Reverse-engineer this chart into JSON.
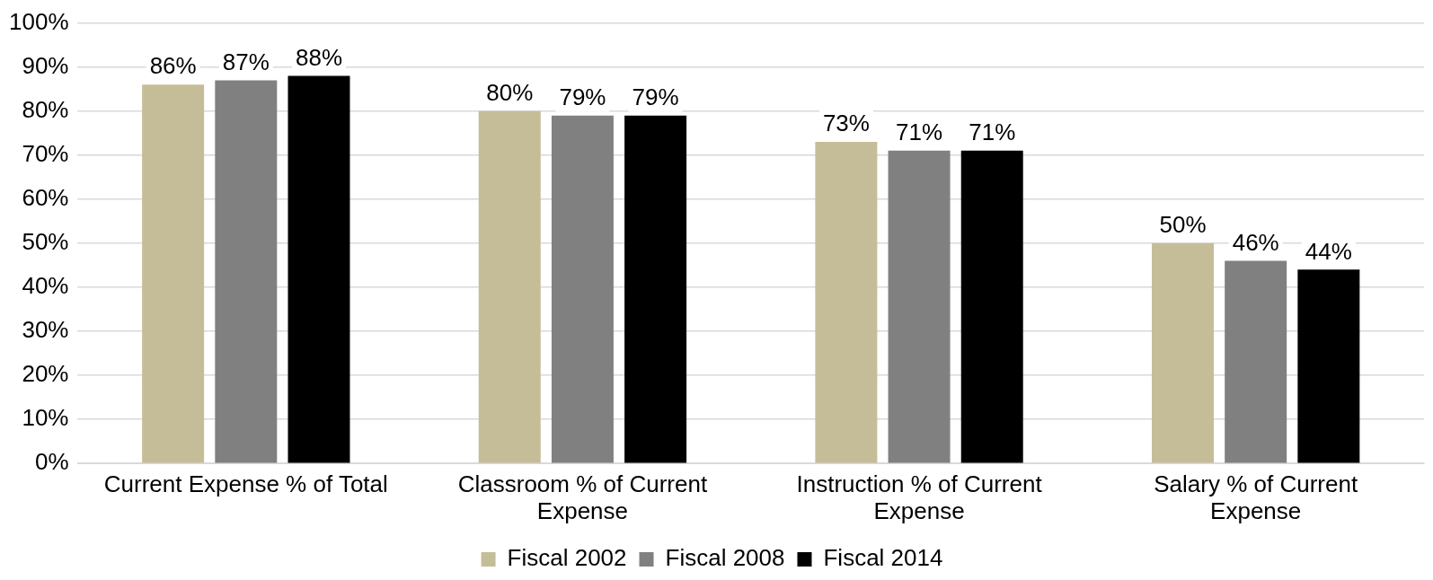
{
  "chart_data": {
    "type": "bar",
    "categories": [
      "Current Expense % of Total",
      "Classroom % of Current Expense",
      "Instruction % of Current Expense",
      "Salary % of Current Expense"
    ],
    "series": [
      {
        "name": "Fiscal 2002",
        "color": "#c4bd97",
        "values": [
          86,
          80,
          73,
          50
        ],
        "value_labels": [
          "86%",
          "80%",
          "73%",
          "50%"
        ]
      },
      {
        "name": "Fiscal 2008",
        "color": "#808080",
        "values": [
          87,
          79,
          71,
          46
        ],
        "value_labels": [
          "87%",
          "79%",
          "71%",
          "46%"
        ]
      },
      {
        "name": "Fiscal 2014",
        "color": "#000000",
        "values": [
          88,
          79,
          71,
          44
        ],
        "value_labels": [
          "88%",
          "79%",
          "71%",
          "44%"
        ]
      }
    ],
    "ylim": [
      0,
      100
    ],
    "yticks": [
      {
        "value": 0,
        "label": "0%"
      },
      {
        "value": 10,
        "label": "10%"
      },
      {
        "value": 20,
        "label": "20%"
      },
      {
        "value": 30,
        "label": "30%"
      },
      {
        "value": 40,
        "label": "40%"
      },
      {
        "value": 50,
        "label": "50%"
      },
      {
        "value": 60,
        "label": "60%"
      },
      {
        "value": 70,
        "label": "70%"
      },
      {
        "value": 80,
        "label": "80%"
      },
      {
        "value": 90,
        "label": "90%"
      },
      {
        "value": 100,
        "label": "100%"
      }
    ],
    "grid": "y",
    "legend": "bottom"
  }
}
